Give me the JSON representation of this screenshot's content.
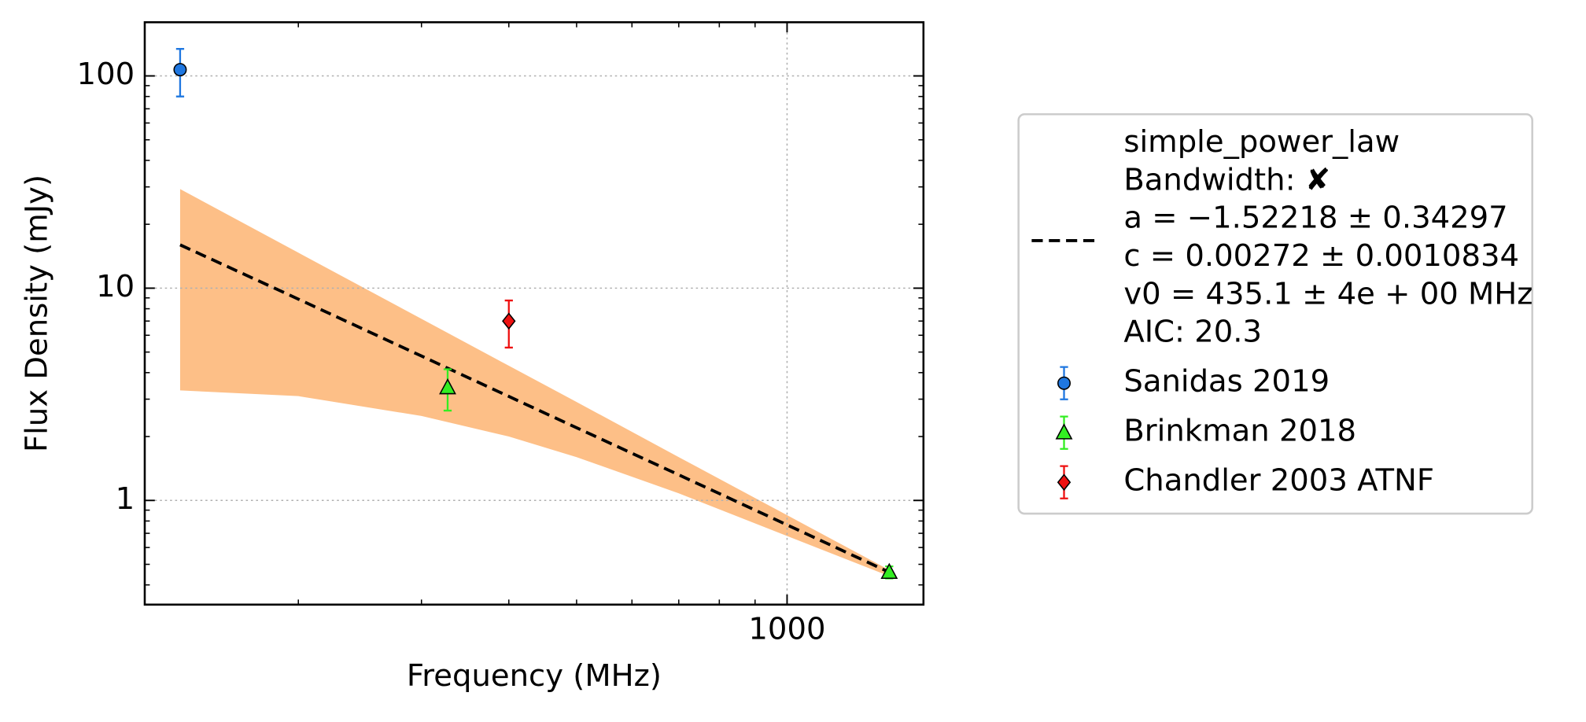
{
  "chart_data": {
    "type": "scatter",
    "xlabel": "Frequency (MHz)",
    "ylabel": "Flux Density (mJy)",
    "xlog": true,
    "ylog": true,
    "grid": true,
    "xlim": [
      120.6,
      1567
    ],
    "ylim": [
      0.323,
      179
    ],
    "xticks": [
      1000
    ],
    "xminorticks": [
      200,
      300,
      400,
      500,
      600,
      700,
      800,
      900
    ],
    "yticks": [
      1,
      10,
      100
    ],
    "yminorticks": [
      0.4,
      0.5,
      0.6,
      0.7,
      0.8,
      0.9,
      2,
      3,
      4,
      5,
      6,
      7,
      8,
      9,
      20,
      30,
      40,
      50,
      60,
      70,
      80,
      90
    ],
    "legend_position": "right",
    "fit": {
      "legend_lines": [
        "simple_power_law",
        "Bandwidth: ✘",
        "a = −1.52218 ± 0.34297",
        "c = 0.00272 ± 0.0010834",
        "v0 = 435.1 ± 4e + 00 MHz",
        "AIC: 20.3"
      ],
      "color": "#000000",
      "band_color": "#fdbf87",
      "x": [
        135.5,
        200,
        300,
        400,
        500,
        700,
        1000,
        1400
      ],
      "values": [
        16.0,
        8.88,
        4.79,
        3.09,
        2.2,
        1.32,
        0.767,
        0.459
      ],
      "upper": [
        29.3,
        14.7,
        7.17,
        4.31,
        2.91,
        1.6,
        0.852,
        0.47
      ],
      "lower": [
        3.3,
        3.1,
        2.5,
        2.0,
        1.6,
        1.08,
        0.68,
        0.44
      ]
    },
    "series": [
      {
        "name": "Sanidas 2019",
        "color": "#1f77e0",
        "marker": "circle",
        "x": [
          135.5
        ],
        "values": [
          107
        ],
        "errors": [
          27
        ]
      },
      {
        "name": "Brinkman 2018",
        "color": "#33ee22",
        "marker": "triangle",
        "x": [
          327,
          1400
        ],
        "values": [
          3.4,
          0.459
        ],
        "errors": [
          0.75,
          0.03
        ]
      },
      {
        "name": "Chandler 2003 ATNF",
        "color": "#ee1111",
        "marker": "diamond",
        "x": [
          400
        ],
        "values": [
          7.0
        ],
        "errors": [
          1.75
        ]
      }
    ]
  }
}
